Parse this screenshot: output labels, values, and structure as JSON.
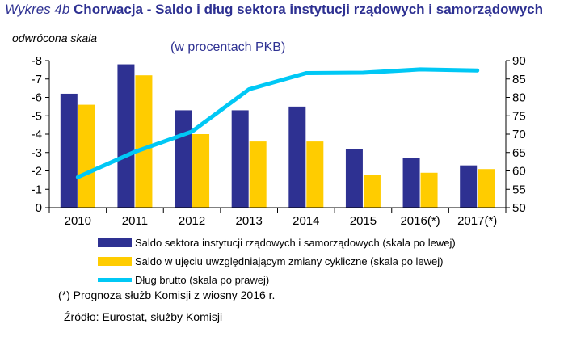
{
  "header": {
    "prefix": "Wykres 4b",
    "title": "Chorwacja - Saldo i dług sektora instytucji rządowych i samorządowych",
    "subtitle": "(w procentach PKB)",
    "scale_note": "odwrócona skala"
  },
  "chart_data": {
    "type": "bar",
    "categories": [
      "2010",
      "2011",
      "2012",
      "2013",
      "2014",
      "2015",
      "2016(*)",
      "2017(*)"
    ],
    "series": [
      {
        "name": "Saldo sektora instytucji rządowych i samorządowych (skala po lewej)",
        "kind": "bar",
        "axis": "left",
        "color": "#2e3192",
        "values": [
          -6.2,
          -7.8,
          -5.3,
          -5.3,
          -5.5,
          -3.2,
          -2.7,
          -2.3
        ]
      },
      {
        "name": "Saldo w ujęciu uwzględniającym zmiany cykliczne (skala po lewej)",
        "kind": "bar",
        "axis": "left",
        "color": "#ffcc00",
        "values": [
          -5.6,
          -7.2,
          -4.0,
          -3.6,
          -3.6,
          -1.8,
          -1.9,
          -2.1
        ]
      },
      {
        "name": "Dług brutto (skala po prawej)",
        "kind": "line",
        "axis": "right",
        "color": "#00c8f5",
        "values": [
          58.3,
          65.2,
          70.7,
          82.2,
          86.6,
          86.7,
          87.6,
          87.3
        ]
      }
    ],
    "left_axis": {
      "ticks": [
        "-8",
        "-7",
        "-6",
        "-5",
        "-4",
        "-3",
        "-2",
        "-1",
        "0"
      ],
      "range": [
        0,
        -8
      ],
      "inverted": true
    },
    "right_axis": {
      "ticks": [
        "90",
        "85",
        "80",
        "75",
        "70",
        "65",
        "60",
        "55",
        "50"
      ],
      "range": [
        50,
        90
      ]
    },
    "grid": false,
    "legend_position": "bottom"
  },
  "legend": [
    {
      "label": "Saldo sektora instytucji rządowych i samorządowych (skala po lewej)",
      "color": "#2e3192"
    },
    {
      "label": "Saldo w ujęciu uwzględniającym zmiany cykliczne (skala po lewej)",
      "color": "#ffcc00"
    },
    {
      "label": "Dług brutto (skala po prawej)",
      "color": "#00c8f5"
    }
  ],
  "footnote": "(*)  Prognoza służb Komisji z wiosny 2016 r.",
  "source": "Źródło: Eurostat, służby Komisji"
}
